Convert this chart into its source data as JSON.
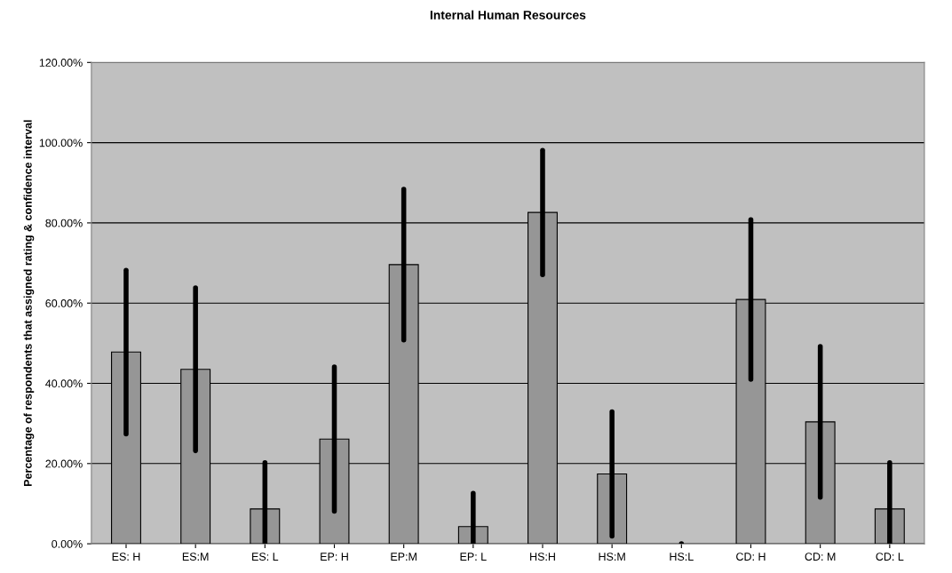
{
  "chart_data": {
    "type": "bar",
    "title": "Internal Human Resources",
    "ylabel": "Percentage of respondents that assigned rating & confidence interval",
    "categories": [
      "ES: H",
      "ES:M",
      "ES: L",
      "EP: H",
      "EP:M",
      "EP: L",
      "HS:H",
      "HS:M",
      "HS:L",
      "CD: H",
      "CD: M",
      "CD: L"
    ],
    "values": [
      47.8,
      43.5,
      8.7,
      26.1,
      69.6,
      4.3,
      82.6,
      17.4,
      0,
      60.9,
      30.4,
      8.7
    ],
    "errors": [
      20.4,
      20.3,
      [
        0,
        20.2
      ],
      18.0,
      18.8,
      [
        0,
        12.6
      ],
      15.5,
      15.5,
      0,
      19.9,
      18.8,
      [
        0,
        20.2
      ]
    ],
    "color": "#969696",
    "ylim": [
      0,
      120
    ],
    "yticks": [
      {
        "value": 0,
        "label": "0.00%"
      },
      {
        "value": 20,
        "label": "20.00%"
      },
      {
        "value": 40,
        "label": "40.00%"
      },
      {
        "value": 60,
        "label": "60.00%"
      },
      {
        "value": 80,
        "label": "80.00%"
      },
      {
        "value": 100,
        "label": "100.00%"
      },
      {
        "value": 120,
        "label": "120.00%"
      }
    ],
    "grid": "y"
  }
}
